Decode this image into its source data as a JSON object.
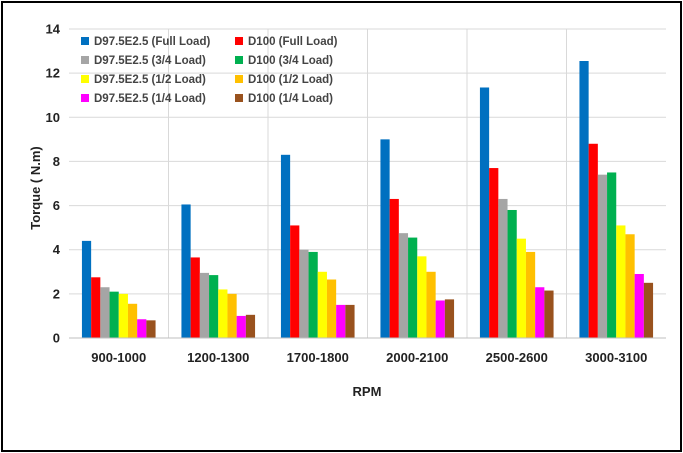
{
  "chart_data": {
    "type": "bar",
    "title": "",
    "xlabel": "RPM",
    "ylabel": "Torque ( N.m)",
    "ylim": [
      0,
      14
    ],
    "yticks": [
      0,
      2,
      4,
      6,
      8,
      10,
      12,
      14
    ],
    "grid": true,
    "legend_position": "top-left",
    "categories": [
      "900-1000",
      "1200-1300",
      "1700-1800",
      "2000-2100",
      "2500-2600",
      "3000-3100"
    ],
    "series": [
      {
        "name": "D97.5E2.5 (Full Load)",
        "color": "#0070C0",
        "values": [
          4.4,
          6.05,
          8.3,
          9.0,
          11.35,
          12.55
        ]
      },
      {
        "name": "D100 (Full Load)",
        "color": "#FF0000",
        "values": [
          2.75,
          3.65,
          5.1,
          6.3,
          7.7,
          8.8
        ]
      },
      {
        "name": "D97.5E2.5 (3/4 Load)",
        "color": "#A5A5A5",
        "values": [
          2.3,
          2.95,
          4.0,
          4.75,
          6.3,
          7.4
        ]
      },
      {
        "name": "D100 (3/4 Load)",
        "color": "#00B050",
        "values": [
          2.1,
          2.85,
          3.9,
          4.55,
          5.8,
          7.5
        ]
      },
      {
        "name": "D97.5E2.5 (1/2 Load)",
        "color": "#FFFF00",
        "values": [
          2.0,
          2.2,
          3.0,
          3.7,
          4.5,
          5.1
        ]
      },
      {
        "name": "D100 (1/2 Load)",
        "color": "#FFC000",
        "values": [
          1.55,
          2.0,
          2.65,
          3.0,
          3.9,
          4.7
        ]
      },
      {
        "name": "D97.5E2.5 (1/4 Load)",
        "color": "#FF00FF",
        "values": [
          0.85,
          1.0,
          1.5,
          1.7,
          2.3,
          2.9
        ]
      },
      {
        "name": "D100 (1/4 Load)",
        "color": "#99521E",
        "values": [
          0.8,
          1.05,
          1.5,
          1.75,
          2.15,
          2.5
        ]
      }
    ]
  }
}
